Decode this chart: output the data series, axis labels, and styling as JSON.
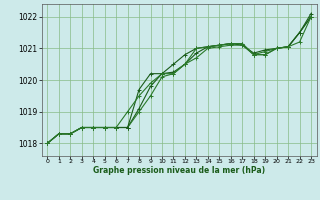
{
  "xlabel": "Graphe pression niveau de la mer (hPa)",
  "xlim": [
    -0.5,
    23.5
  ],
  "ylim": [
    1017.6,
    1022.4
  ],
  "yticks": [
    1018,
    1019,
    1020,
    1021,
    1022
  ],
  "xticks": [
    0,
    1,
    2,
    3,
    4,
    5,
    6,
    7,
    8,
    9,
    10,
    11,
    12,
    13,
    14,
    15,
    16,
    17,
    18,
    19,
    20,
    21,
    22,
    23
  ],
  "bg_color": "#cdeaea",
  "grid_color": "#88bb88",
  "line_color_dark": "#1a5c1a",
  "line_color_mid": "#2a7a2a",
  "series": [
    [
      1018.0,
      1018.3,
      1018.3,
      1018.5,
      1018.5,
      1018.5,
      1018.5,
      1018.5,
      1019.1,
      1019.8,
      1020.2,
      1020.25,
      1020.5,
      1020.85,
      1021.05,
      1021.1,
      1021.15,
      1021.1,
      1020.85,
      1020.95,
      1021.0,
      1021.05,
      1021.5,
      1022.1
    ],
    [
      1018.0,
      1018.3,
      1018.3,
      1018.5,
      1018.5,
      1018.5,
      1018.5,
      1018.5,
      1019.0,
      1019.5,
      1020.1,
      1020.2,
      1020.5,
      1020.7,
      1021.0,
      1021.05,
      1021.1,
      1021.1,
      1020.8,
      1020.9,
      1021.0,
      1021.05,
      1021.5,
      1022.0
    ],
    [
      1018.0,
      1018.3,
      1018.3,
      1018.5,
      1018.5,
      1018.5,
      1018.5,
      1018.5,
      1019.7,
      1020.2,
      1020.2,
      1020.5,
      1020.8,
      1021.0,
      1021.05,
      1021.1,
      1021.15,
      1021.15,
      1020.8,
      1020.8,
      1021.0,
      1021.05,
      1021.5,
      1022.0
    ],
    [
      1018.0,
      1018.3,
      1018.3,
      1018.5,
      1018.5,
      1018.5,
      1018.5,
      1019.0,
      1019.5,
      1019.9,
      1020.2,
      1020.2,
      1020.5,
      1021.0,
      1021.05,
      1021.1,
      1021.15,
      1021.15,
      1020.8,
      1020.8,
      1021.0,
      1021.05,
      1021.2,
      1022.0
    ]
  ]
}
